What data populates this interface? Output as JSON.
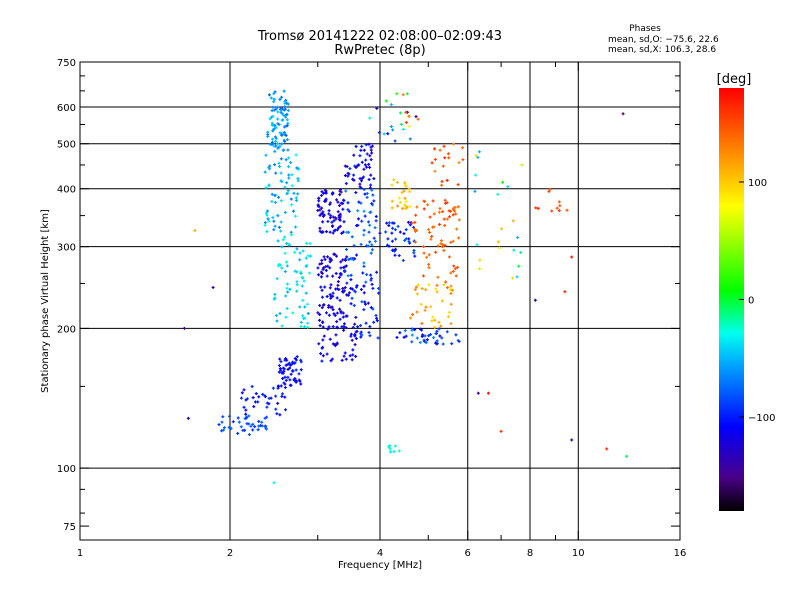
{
  "chart_data": {
    "type": "scatter",
    "title": "Tromsø 20141222 02:08:00–02:09:43",
    "subtitle": "RwPretec (8p)",
    "xlabel": "Frequency [MHz]",
    "ylabel": "Stationary phase Virtual Height [km]",
    "xscale": "log",
    "yscale": "log",
    "xlim": [
      1,
      16
    ],
    "ylim": [
      70,
      750
    ],
    "xticks": [
      1,
      2,
      4,
      6,
      8,
      10,
      16
    ],
    "xtick_labels": [
      "1",
      "2",
      "4",
      "6",
      "8",
      "10",
      "16"
    ],
    "xgrid": [
      2,
      4,
      6,
      8,
      10
    ],
    "yticks": [
      75,
      100,
      200,
      300,
      400,
      500,
      600,
      750
    ],
    "ytick_labels": [
      "75",
      "100",
      "200",
      "300",
      "400",
      "500",
      "600",
      "750"
    ],
    "ygrid": [
      100,
      200,
      300,
      400,
      500,
      600
    ],
    "stats": {
      "heading": "Phases",
      "line1": "mean, sd,O: −75.6, 22.6",
      "line2": "mean, sd,X: 106.3, 28.6"
    },
    "colorbar": {
      "label": "[deg]",
      "range": [
        -180,
        180
      ],
      "ticks": [
        100,
        0,
        -100
      ],
      "tick_labels": [
        "100",
        "0",
        "−100"
      ]
    },
    "clusters": [
      {
        "f": [
          2.38,
          2.62
        ],
        "h": [
          480,
          650
        ],
        "phase": [
          -80,
          -40
        ],
        "n": 90
      },
      {
        "f": [
          2.35,
          2.75
        ],
        "h": [
          320,
          480
        ],
        "phase": [
          -70,
          -30
        ],
        "n": 70
      },
      {
        "f": [
          2.45,
          2.9
        ],
        "h": [
          200,
          320
        ],
        "phase": [
          -60,
          -20
        ],
        "n": 70
      },
      {
        "f": [
          2.5,
          2.8
        ],
        "h": [
          150,
          175
        ],
        "phase": [
          -120,
          -95
        ],
        "n": 55
      },
      {
        "f": [
          2.1,
          2.6
        ],
        "h": [
          130,
          150
        ],
        "phase": [
          -115,
          -90
        ],
        "n": 35
      },
      {
        "f": [
          1.9,
          2.4
        ],
        "h": [
          118,
          130
        ],
        "phase": [
          -95,
          -70
        ],
        "n": 40
      },
      {
        "f": [
          3.0,
          3.4
        ],
        "h": [
          320,
          400
        ],
        "phase": [
          -140,
          -100
        ],
        "n": 80
      },
      {
        "f": [
          3.0,
          3.5
        ],
        "h": [
          215,
          290
        ],
        "phase": [
          -135,
          -100
        ],
        "n": 90
      },
      {
        "f": [
          3.0,
          3.6
        ],
        "h": [
          170,
          215
        ],
        "phase": [
          -130,
          -100
        ],
        "n": 60
      },
      {
        "f": [
          3.4,
          3.9
        ],
        "h": [
          400,
          500
        ],
        "phase": [
          -135,
          -90
        ],
        "n": 50
      },
      {
        "f": [
          3.4,
          4.0
        ],
        "h": [
          250,
          400
        ],
        "phase": [
          -110,
          -60
        ],
        "n": 70
      },
      {
        "f": [
          3.5,
          4.0
        ],
        "h": [
          190,
          250
        ],
        "phase": [
          -120,
          -80
        ],
        "n": 40
      },
      {
        "f": [
          4.2,
          4.6
        ],
        "h": [
          360,
          420
        ],
        "phase": [
          80,
          120
        ],
        "n": 25
      },
      {
        "f": [
          4.1,
          4.7
        ],
        "h": [
          280,
          340
        ],
        "phase": [
          -120,
          -80
        ],
        "n": 40
      },
      {
        "f": [
          4.6,
          5.8
        ],
        "h": [
          250,
          380
        ],
        "phase": [
          130,
          160
        ],
        "n": 70
      },
      {
        "f": [
          4.6,
          5.6
        ],
        "h": [
          200,
          250
        ],
        "phase": [
          90,
          140
        ],
        "n": 35
      },
      {
        "f": [
          4.3,
          5.8
        ],
        "h": [
          185,
          200
        ],
        "phase": [
          -120,
          -60
        ],
        "n": 40
      },
      {
        "f": [
          5.0,
          6.0
        ],
        "h": [
          400,
          500
        ],
        "phase": [
          120,
          170
        ],
        "n": 18
      },
      {
        "f": [
          3.8,
          4.8
        ],
        "h": [
          500,
          650
        ],
        "phase": [
          -150,
          160
        ],
        "n": 25
      },
      {
        "f": [
          6.2,
          7.8
        ],
        "h": [
          250,
          500
        ],
        "phase": [
          -60,
          120
        ],
        "n": 22
      },
      {
        "f": [
          8.0,
          9.5
        ],
        "h": [
          350,
          400
        ],
        "phase": [
          140,
          160
        ],
        "n": 10
      },
      {
        "f": [
          4.1,
          4.4
        ],
        "h": [
          108,
          112
        ],
        "phase": [
          -40,
          -20
        ],
        "n": 8
      }
    ],
    "isolated_points": [
      {
        "f": 2.45,
        "h": 93,
        "phase": -30
      },
      {
        "f": 12.3,
        "h": 580,
        "phase": -150
      },
      {
        "f": 9.7,
        "h": 115,
        "phase": -140
      },
      {
        "f": 11.4,
        "h": 110,
        "phase": 160
      },
      {
        "f": 12.5,
        "h": 106,
        "phase": -10
      },
      {
        "f": 1.65,
        "h": 128,
        "phase": -130
      },
      {
        "f": 1.62,
        "h": 200,
        "phase": -140
      },
      {
        "f": 1.7,
        "h": 325,
        "phase": 110
      },
      {
        "f": 1.85,
        "h": 245,
        "phase": -140
      },
      {
        "f": 6.3,
        "h": 145,
        "phase": -150
      },
      {
        "f": 6.6,
        "h": 145,
        "phase": 175
      },
      {
        "f": 7.0,
        "h": 120,
        "phase": 160
      },
      {
        "f": 9.7,
        "h": 285,
        "phase": 170
      },
      {
        "f": 9.4,
        "h": 240,
        "phase": 165
      },
      {
        "f": 8.2,
        "h": 230,
        "phase": -130
      }
    ]
  }
}
